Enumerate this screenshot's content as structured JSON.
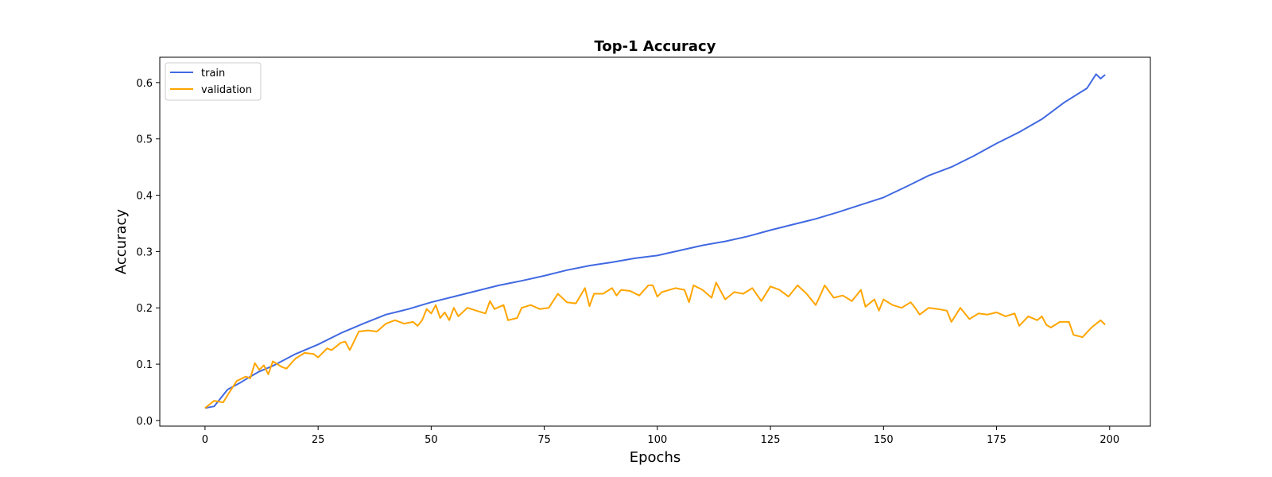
{
  "chart_data": {
    "type": "line",
    "title": "Top-1 Accuracy",
    "xlabel": "Epochs",
    "ylabel": "Accuracy",
    "xlim": [
      -10,
      209
    ],
    "ylim": [
      -0.01,
      0.645
    ],
    "xticks": [
      0,
      25,
      50,
      75,
      100,
      125,
      150,
      175,
      200
    ],
    "yticks": [
      0.0,
      0.1,
      0.2,
      0.3,
      0.4,
      0.5,
      0.6
    ],
    "grid": false,
    "legend_position": "top-left",
    "series": [
      {
        "name": "train",
        "color": "#4169e1",
        "x": [
          0,
          2,
          5,
          8,
          10,
          12,
          15,
          20,
          25,
          30,
          35,
          40,
          45,
          50,
          55,
          60,
          65,
          70,
          75,
          80,
          85,
          90,
          95,
          100,
          105,
          110,
          115,
          120,
          125,
          130,
          135,
          140,
          145,
          150,
          155,
          160,
          165,
          170,
          175,
          180,
          185,
          190,
          195,
          197,
          198,
          199
        ],
        "y": [
          0.022,
          0.025,
          0.055,
          0.068,
          0.078,
          0.087,
          0.097,
          0.118,
          0.135,
          0.155,
          0.172,
          0.188,
          0.198,
          0.21,
          0.22,
          0.23,
          0.24,
          0.248,
          0.257,
          0.267,
          0.275,
          0.281,
          0.288,
          0.293,
          0.302,
          0.311,
          0.318,
          0.327,
          0.338,
          0.348,
          0.358,
          0.37,
          0.383,
          0.396,
          0.415,
          0.435,
          0.45,
          0.47,
          0.492,
          0.512,
          0.535,
          0.565,
          0.59,
          0.615,
          0.607,
          0.614
        ]
      },
      {
        "name": "validation",
        "color": "#ffa500",
        "x": [
          0,
          2,
          4,
          5,
          7,
          9,
          10,
          11,
          12,
          13,
          14,
          15,
          17,
          18,
          20,
          22,
          24,
          25,
          27,
          28,
          30,
          31,
          32,
          34,
          36,
          38,
          40,
          42,
          44,
          46,
          47,
          48,
          49,
          50,
          51,
          52,
          53,
          54,
          55,
          56,
          58,
          60,
          62,
          63,
          64,
          66,
          67,
          69,
          70,
          72,
          74,
          76,
          78,
          80,
          82,
          84,
          85,
          86,
          88,
          90,
          91,
          92,
          94,
          96,
          98,
          99,
          100,
          101,
          104,
          106,
          107,
          108,
          110,
          112,
          113,
          115,
          117,
          119,
          121,
          123,
          125,
          127,
          129,
          131,
          133,
          135,
          136,
          137,
          139,
          141,
          143,
          145,
          146,
          148,
          149,
          150,
          152,
          154,
          156,
          157,
          158,
          160,
          162,
          164,
          165,
          167,
          169,
          171,
          173,
          175,
          177,
          179,
          180,
          182,
          184,
          185,
          186,
          187,
          189,
          191,
          192,
          194,
          196,
          198,
          199
        ],
        "y": [
          0.022,
          0.035,
          0.032,
          0.045,
          0.07,
          0.078,
          0.075,
          0.102,
          0.09,
          0.098,
          0.082,
          0.105,
          0.095,
          0.092,
          0.11,
          0.12,
          0.118,
          0.112,
          0.128,
          0.125,
          0.138,
          0.14,
          0.125,
          0.158,
          0.16,
          0.158,
          0.172,
          0.178,
          0.172,
          0.175,
          0.168,
          0.178,
          0.198,
          0.19,
          0.205,
          0.182,
          0.192,
          0.178,
          0.2,
          0.185,
          0.2,
          0.195,
          0.19,
          0.212,
          0.198,
          0.205,
          0.178,
          0.182,
          0.2,
          0.205,
          0.198,
          0.2,
          0.225,
          0.21,
          0.208,
          0.235,
          0.203,
          0.225,
          0.225,
          0.235,
          0.222,
          0.232,
          0.23,
          0.222,
          0.24,
          0.24,
          0.22,
          0.228,
          0.235,
          0.232,
          0.21,
          0.24,
          0.232,
          0.218,
          0.245,
          0.215,
          0.228,
          0.225,
          0.235,
          0.212,
          0.238,
          0.232,
          0.22,
          0.24,
          0.225,
          0.205,
          0.222,
          0.24,
          0.218,
          0.222,
          0.212,
          0.232,
          0.202,
          0.215,
          0.195,
          0.215,
          0.205,
          0.2,
          0.21,
          0.2,
          0.188,
          0.2,
          0.198,
          0.195,
          0.175,
          0.2,
          0.18,
          0.19,
          0.188,
          0.192,
          0.185,
          0.19,
          0.168,
          0.185,
          0.178,
          0.185,
          0.17,
          0.165,
          0.175,
          0.175,
          0.152,
          0.148,
          0.165,
          0.178,
          0.17
        ]
      }
    ]
  }
}
